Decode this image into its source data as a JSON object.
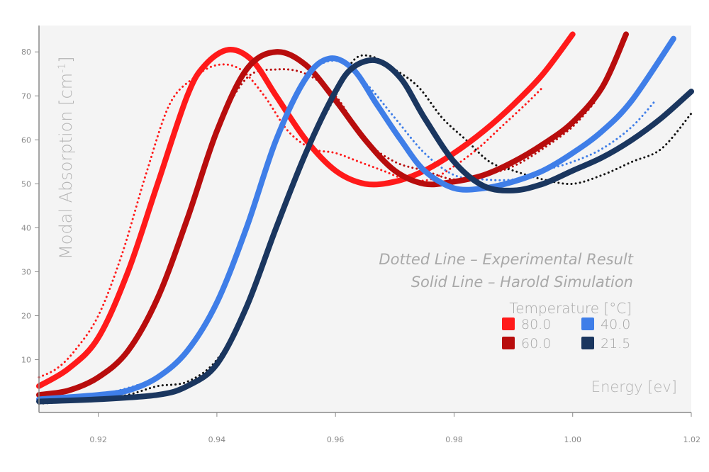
{
  "chart_data": {
    "type": "line",
    "xlabel": "Energy [ev]",
    "ylabel": "Modal Absorption [cm",
    "ylabel_sup": "-1",
    "ylabel_close": "]",
    "xlim": [
      0.91,
      1.02
    ],
    "ylim": [
      -2,
      86
    ],
    "x_ticks": [
      "0.92",
      "0.94",
      "0.96",
      "0.98",
      "1.00",
      "1.02"
    ],
    "y_ticks": [
      "10",
      "20",
      "30",
      "40",
      "50",
      "60",
      "70",
      "80"
    ],
    "annotations": [
      "Dotted Line – Experimental Result",
      "Solid Line – Harold Simulation"
    ],
    "legend_title": "Temperature [°C]",
    "legend_position": "bottom-right",
    "grid": false,
    "colors": {
      "t80": "#ff1a1a",
      "t60": "#b80d0d",
      "t40": "#3f7ee8",
      "t215": "#1a365f",
      "experimental_215": "#111111",
      "plot_bg": "#f4f4f4",
      "axis": "#888888"
    },
    "series": [
      {
        "name": "80.0",
        "color_key": "t80",
        "kind": "simulation",
        "x": [
          0.91,
          0.915,
          0.92,
          0.925,
          0.93,
          0.935,
          0.938,
          0.942,
          0.946,
          0.95,
          0.955,
          0.96,
          0.965,
          0.97,
          0.975,
          0.98,
          0.985,
          0.99,
          0.995,
          1.0
        ],
        "y": [
          4,
          8,
          15,
          30,
          50,
          70,
          77,
          80.5,
          78,
          70,
          60,
          53,
          50,
          50.5,
          53,
          57,
          62,
          68,
          75,
          84
        ]
      },
      {
        "name": "60.0",
        "color_key": "t60",
        "kind": "simulation",
        "x": [
          0.91,
          0.915,
          0.92,
          0.925,
          0.93,
          0.935,
          0.94,
          0.945,
          0.95,
          0.955,
          0.96,
          0.965,
          0.97,
          0.975,
          0.98,
          0.985,
          0.99,
          0.995,
          1.0,
          1.005,
          1.009
        ],
        "y": [
          2,
          3,
          6,
          12,
          24,
          42,
          62,
          76,
          80,
          77,
          69,
          60,
          53,
          50,
          50.5,
          52,
          55,
          59,
          64,
          72,
          84
        ]
      },
      {
        "name": "40.0",
        "color_key": "t40",
        "kind": "simulation",
        "x": [
          0.91,
          0.92,
          0.925,
          0.93,
          0.935,
          0.94,
          0.945,
          0.95,
          0.955,
          0.959,
          0.963,
          0.967,
          0.971,
          0.975,
          0.98,
          0.985,
          0.99,
          0.995,
          1.0,
          1.005,
          1.01,
          1.017
        ],
        "y": [
          1,
          2,
          3,
          6,
          12,
          23,
          40,
          60,
          74,
          78.5,
          76,
          68,
          60,
          53,
          49,
          49,
          50.5,
          53,
          57,
          62,
          69,
          83
        ]
      },
      {
        "name": "21.5",
        "color_key": "t215",
        "kind": "simulation",
        "x": [
          0.91,
          0.92,
          0.93,
          0.935,
          0.94,
          0.945,
          0.95,
          0.955,
          0.96,
          0.963,
          0.967,
          0.971,
          0.975,
          0.98,
          0.985,
          0.99,
          0.995,
          1.0,
          1.005,
          1.01,
          1.015,
          1.02
        ],
        "y": [
          0.5,
          1,
          2,
          4,
          9,
          22,
          40,
          57,
          71,
          76.5,
          78,
          74,
          65,
          55,
          49.5,
          48.5,
          50,
          53,
          56,
          60,
          65,
          71
        ]
      },
      {
        "name": "80.0",
        "color_key": "t80",
        "kind": "experimental",
        "x": [
          0.91,
          0.913,
          0.916,
          0.92,
          0.924,
          0.928,
          0.932,
          0.936,
          0.94,
          0.944,
          0.948,
          0.952,
          0.956,
          0.96,
          0.964,
          0.968,
          0.972,
          0.976,
          0.98,
          0.984,
          0.988,
          0.992,
          0.995
        ],
        "y": [
          6,
          8,
          12,
          20,
          34,
          52,
          68,
          74,
          77,
          76,
          70,
          62,
          58,
          57,
          55,
          53,
          51,
          51,
          54,
          58,
          63,
          68,
          72
        ]
      },
      {
        "name": "60.0",
        "color_key": "t60",
        "kind": "experimental",
        "x": [
          0.91,
          0.915,
          0.92,
          0.925,
          0.93,
          0.935,
          0.94,
          0.945,
          0.95,
          0.955,
          0.96,
          0.965,
          0.97,
          0.975,
          0.98,
          0.985,
          0.99,
          0.995,
          1.0,
          1.004
        ],
        "y": [
          2,
          3,
          6,
          12,
          24,
          42,
          62,
          74,
          76,
          75,
          70,
          60,
          55,
          53,
          51,
          52,
          54,
          58,
          63,
          69
        ]
      },
      {
        "name": "40.0",
        "color_key": "t40",
        "kind": "experimental",
        "x": [
          0.91,
          0.92,
          0.93,
          0.935,
          0.94,
          0.945,
          0.95,
          0.955,
          0.96,
          0.965,
          0.97,
          0.975,
          0.98,
          0.985,
          0.99,
          0.995,
          1.0,
          1.005,
          1.01,
          1.014
        ],
        "y": [
          1,
          2,
          6,
          12,
          23,
          40,
          60,
          74,
          78,
          73,
          65,
          57,
          52,
          51,
          51,
          53,
          55,
          58,
          63,
          69
        ]
      },
      {
        "name": "21.5",
        "color_key": "experimental_215",
        "kind": "experimental",
        "x": [
          0.91,
          0.92,
          0.925,
          0.93,
          0.935,
          0.94,
          0.945,
          0.95,
          0.955,
          0.96,
          0.963,
          0.966,
          0.97,
          0.974,
          0.978,
          0.982,
          0.986,
          0.99,
          0.995,
          1.0,
          1.005,
          1.01,
          1.015,
          1.02
        ],
        "y": [
          0,
          1,
          2,
          4,
          5,
          10,
          22,
          40,
          57,
          70,
          78,
          79,
          76,
          72,
          65,
          60,
          55,
          53,
          51,
          50,
          52,
          55,
          58,
          66
        ]
      }
    ],
    "legend": [
      {
        "label": "80.0",
        "color_key": "t80"
      },
      {
        "label": "40.0",
        "color_key": "t40"
      },
      {
        "label": "60.0",
        "color_key": "t60"
      },
      {
        "label": "21.5",
        "color_key": "t215"
      }
    ]
  }
}
